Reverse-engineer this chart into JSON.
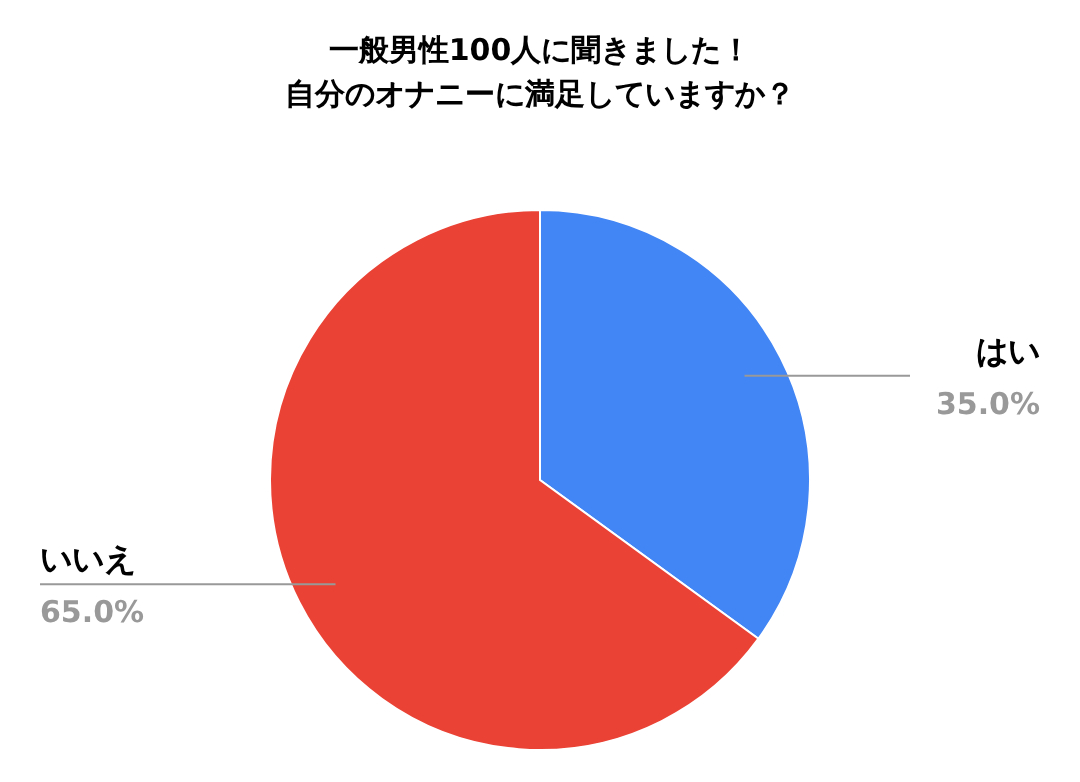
{
  "chart_data": {
    "type": "pie",
    "title": "一般男性100人に聞きました！",
    "subtitle": "自分のオナニーに満足していますか？",
    "categories": [
      "はい",
      "いいえ"
    ],
    "values": [
      35,
      65
    ],
    "value_labels": [
      "35.0%",
      "65.0%"
    ],
    "colors": [
      "#4285f4",
      "#ea4335"
    ]
  }
}
